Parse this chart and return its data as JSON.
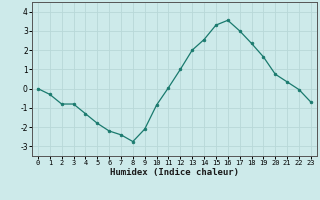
{
  "x": [
    0,
    1,
    2,
    3,
    4,
    5,
    6,
    7,
    8,
    9,
    10,
    11,
    12,
    13,
    14,
    15,
    16,
    17,
    18,
    19,
    20,
    21,
    22,
    23
  ],
  "y": [
    0,
    -0.3,
    -0.8,
    -0.8,
    -1.3,
    -1.8,
    -2.2,
    -2.4,
    -2.75,
    -2.1,
    -0.85,
    0.05,
    1.0,
    2.0,
    2.55,
    3.3,
    3.55,
    3.0,
    2.35,
    1.65,
    0.75,
    0.35,
    -0.05,
    -0.7
  ],
  "xlabel": "Humidex (Indice chaleur)",
  "ylim": [
    -3.5,
    4.5
  ],
  "xlim": [
    -0.5,
    23.5
  ],
  "line_color": "#1a7a6e",
  "marker_color": "#1a7a6e",
  "bg_color": "#cdeaea",
  "grid_color": "#b8d8d8",
  "yticks": [
    -3,
    -2,
    -1,
    0,
    1,
    2,
    3,
    4
  ],
  "xticks": [
    0,
    1,
    2,
    3,
    4,
    5,
    6,
    7,
    8,
    9,
    10,
    11,
    12,
    13,
    14,
    15,
    16,
    17,
    18,
    19,
    20,
    21,
    22,
    23
  ],
  "tick_fontsize": 5.0,
  "xlabel_fontsize": 6.5
}
